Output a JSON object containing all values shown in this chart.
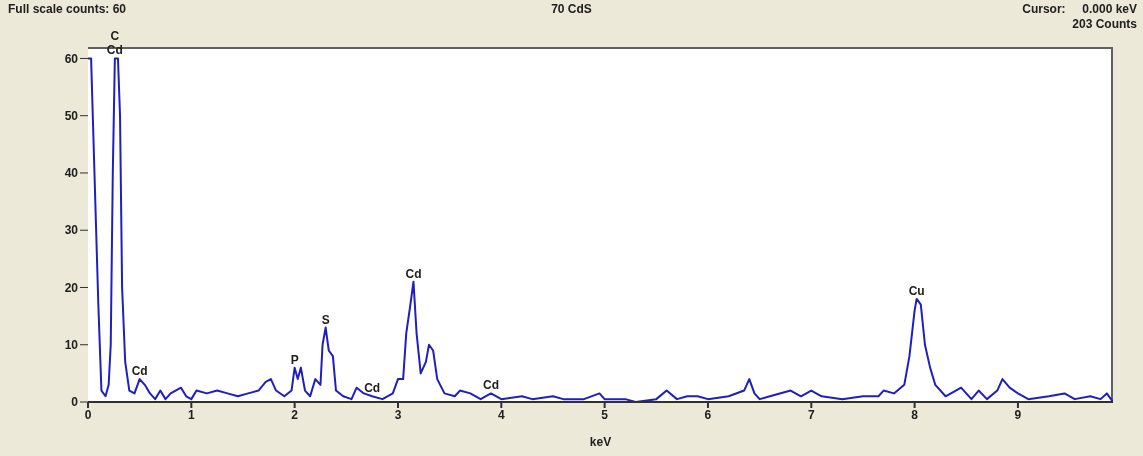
{
  "chart_data": {
    "type": "line",
    "title": "70 CdS",
    "xlabel": "keV",
    "annotations": [
      "Full scale counts: 60",
      "Cursor:     0.000 keV",
      "203 Counts",
      {
        "text": "C",
        "x": 0.26,
        "y": 60
      },
      {
        "text": "Cd",
        "x": 0.26,
        "y": 60
      },
      {
        "text": "Cd",
        "x": 0.5,
        "y": 4
      },
      {
        "text": "P",
        "x": 2.0,
        "y": 6
      },
      {
        "text": "S",
        "x": 2.3,
        "y": 13
      },
      {
        "text": "Cd",
        "x": 2.75,
        "y": 1
      },
      {
        "text": "Cd",
        "x": 3.15,
        "y": 21
      },
      {
        "text": "Cd",
        "x": 3.9,
        "y": 1.5
      },
      {
        "text": "Cu",
        "x": 8.02,
        "y": 18
      }
    ],
    "x": [
      0,
      0.03,
      0.1,
      0.13,
      0.17,
      0.2,
      0.22,
      0.24,
      0.26,
      0.29,
      0.31,
      0.33,
      0.36,
      0.4,
      0.45,
      0.5,
      0.55,
      0.6,
      0.65,
      0.7,
      0.75,
      0.8,
      0.9,
      0.95,
      1.0,
      1.05,
      1.15,
      1.25,
      1.35,
      1.45,
      1.55,
      1.65,
      1.72,
      1.77,
      1.82,
      1.9,
      1.97,
      2.0,
      2.03,
      2.06,
      2.1,
      2.15,
      2.2,
      2.25,
      2.27,
      2.3,
      2.33,
      2.37,
      2.4,
      2.47,
      2.55,
      2.6,
      2.67,
      2.75,
      2.85,
      2.95,
      3.0,
      3.05,
      3.08,
      3.12,
      3.15,
      3.18,
      3.22,
      3.27,
      3.3,
      3.34,
      3.38,
      3.45,
      3.55,
      3.6,
      3.7,
      3.8,
      3.9,
      4.0,
      4.2,
      4.3,
      4.5,
      4.6,
      4.8,
      4.95,
      5.0,
      5.2,
      5.3,
      5.5,
      5.6,
      5.7,
      5.8,
      5.9,
      6.0,
      6.2,
      6.35,
      6.4,
      6.45,
      6.5,
      6.6,
      6.8,
      6.9,
      7.0,
      7.1,
      7.3,
      7.5,
      7.65,
      7.7,
      7.8,
      7.9,
      7.95,
      8.0,
      8.02,
      8.06,
      8.1,
      8.15,
      8.2,
      8.3,
      8.45,
      8.55,
      8.62,
      8.7,
      8.8,
      8.85,
      8.92,
      9.0,
      9.1,
      9.3,
      9.45,
      9.55,
      9.7,
      9.8,
      9.86,
      9.92
    ],
    "series": [
      {
        "color": "#1f1fbf",
        "values": [
          60,
          60,
          17,
          2,
          1,
          3,
          10,
          40,
          60,
          60,
          50,
          20,
          7,
          2,
          1.5,
          4,
          3,
          1.5,
          0.5,
          2,
          0.5,
          1.5,
          2.5,
          1,
          0.5,
          2,
          1.5,
          2,
          1.5,
          1,
          1.5,
          2,
          3.5,
          4,
          2,
          1,
          2,
          6,
          4,
          6,
          2,
          1,
          4,
          3,
          10,
          13,
          9,
          8,
          2,
          1,
          0.5,
          2.5,
          1.5,
          1,
          0.5,
          1.5,
          4,
          4,
          12,
          17,
          21,
          12,
          5,
          7,
          10,
          9,
          4,
          1.5,
          1,
          2,
          1.5,
          0.5,
          1.5,
          0.5,
          1,
          0.5,
          1,
          0.5,
          0.5,
          1.5,
          0.5,
          0.5,
          0,
          0.5,
          2,
          0.5,
          1,
          1,
          0.5,
          1,
          2,
          4,
          1.5,
          0.5,
          1,
          2,
          1,
          2,
          1,
          0.5,
          1,
          1,
          2,
          1.5,
          3,
          8,
          16,
          18,
          17,
          10,
          6,
          3,
          1,
          2.5,
          0.5,
          2,
          0.5,
          2,
          4,
          2.5,
          1.5,
          0.5,
          1,
          1.5,
          0.5,
          1,
          0.5,
          1.5,
          0
        ]
      }
    ],
    "xlim": [
      0,
      9.92
    ],
    "xticks": [
      0,
      1,
      2,
      3,
      4,
      5,
      6,
      7,
      8,
      9
    ],
    "ylim": [
      0,
      62
    ],
    "yticks": [
      0,
      10,
      20,
      30,
      40,
      50,
      60
    ],
    "grid": false,
    "legend": false,
    "marker": "none",
    "line_style": "solid"
  }
}
